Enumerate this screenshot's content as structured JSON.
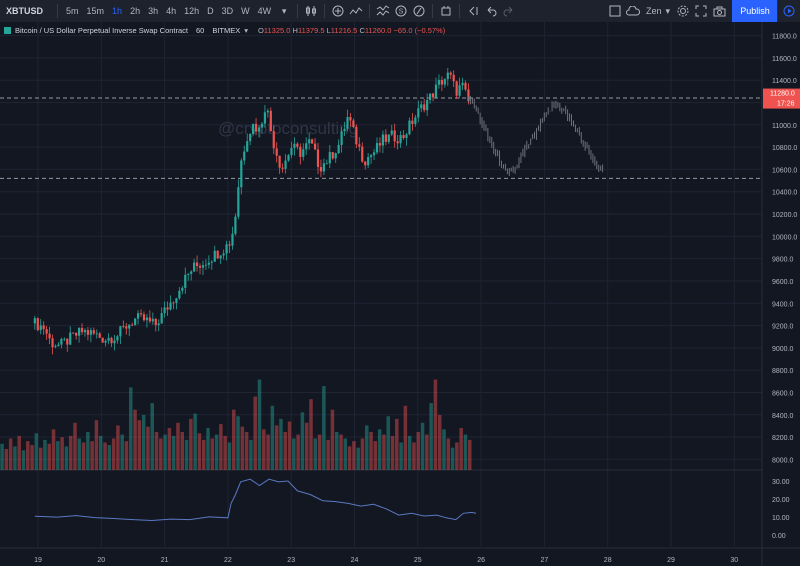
{
  "toolbar": {
    "symbol": "XBTUSD",
    "timeframes": [
      "5m",
      "15m",
      "1h",
      "2h",
      "3h",
      "4h",
      "12h",
      "D",
      "3D",
      "W",
      "4W"
    ],
    "active_timeframe": "1h",
    "theme_label": "Zen",
    "publish_label": "Publish"
  },
  "legend": {
    "title": "Bitcoin / US Dollar Perpetual Inverse Swap Contract",
    "interval": "60",
    "exchange": "BITMEX",
    "open_label": "O",
    "open": "11325.0",
    "high_label": "H",
    "high": "11379.5",
    "low_label": "L",
    "low": "11216.5",
    "close_label": "C",
    "close": "11260.0",
    "change": "−65.0 (−0.57%)"
  },
  "watermark": "@cryptoconsulting",
  "price_badge": {
    "price": "11280.0",
    "countdown": "17:26"
  },
  "colors": {
    "up": "#26a69a",
    "down": "#ef5350",
    "background": "#131722",
    "accent": "#2962ff",
    "projection": "#787b86",
    "oscillator": "#5a78c2"
  },
  "chart_data": {
    "type": "candlestick",
    "price_axis": {
      "ticks": [
        11800,
        11600,
        11400,
        11200,
        11000,
        10800,
        10600,
        10400,
        10200,
        10000,
        9800,
        9600,
        9400,
        9200,
        9000,
        8800,
        8600,
        8400,
        8200,
        8000
      ],
      "range": [
        7950,
        11850
      ]
    },
    "time_axis": {
      "ticks": [
        "19",
        "20",
        "21",
        "22",
        "23",
        "24",
        "25",
        "26",
        "27",
        "28",
        "29",
        "30"
      ]
    },
    "horizontal_levels": [
      11240,
      10520
    ],
    "price_path": [
      [
        18.95,
        9220
      ],
      [
        19.1,
        9180
      ],
      [
        19.2,
        9050
      ],
      [
        19.35,
        9020
      ],
      [
        19.5,
        9080
      ],
      [
        19.7,
        9150
      ],
      [
        19.9,
        9120
      ],
      [
        20.05,
        9080
      ],
      [
        20.25,
        9110
      ],
      [
        20.4,
        9200
      ],
      [
        20.55,
        9260
      ],
      [
        20.7,
        9250
      ],
      [
        20.85,
        9200
      ],
      [
        21.0,
        9330
      ],
      [
        21.15,
        9450
      ],
      [
        21.3,
        9600
      ],
      [
        21.45,
        9720
      ],
      [
        21.6,
        9760
      ],
      [
        21.8,
        9840
      ],
      [
        21.95,
        9900
      ],
      [
        22.05,
        9960
      ],
      [
        22.12,
        10200
      ],
      [
        22.2,
        10650
      ],
      [
        22.3,
        10900
      ],
      [
        22.4,
        11000
      ],
      [
        22.5,
        10950
      ],
      [
        22.6,
        11200
      ],
      [
        22.7,
        10880
      ],
      [
        22.85,
        10600
      ],
      [
        23.0,
        10800
      ],
      [
        23.15,
        10750
      ],
      [
        23.3,
        10850
      ],
      [
        23.45,
        10620
      ],
      [
        23.6,
        10700
      ],
      [
        23.75,
        10820
      ],
      [
        23.9,
        11080
      ],
      [
        24.0,
        10900
      ],
      [
        24.15,
        10680
      ],
      [
        24.3,
        10750
      ],
      [
        24.45,
        10860
      ],
      [
        24.6,
        10900
      ],
      [
        24.75,
        10880
      ],
      [
        24.9,
        11020
      ],
      [
        25.05,
        11150
      ],
      [
        25.2,
        11250
      ],
      [
        25.35,
        11380
      ],
      [
        25.5,
        11450
      ],
      [
        25.6,
        11300
      ],
      [
        25.7,
        11350
      ],
      [
        25.8,
        11200
      ]
    ],
    "projection_path": [
      [
        25.8,
        11250
      ],
      [
        25.95,
        11100
      ],
      [
        26.1,
        10900
      ],
      [
        26.25,
        10720
      ],
      [
        26.4,
        10550
      ],
      [
        26.55,
        10620
      ],
      [
        26.7,
        10780
      ],
      [
        26.85,
        10920
      ],
      [
        27.0,
        11060
      ],
      [
        27.15,
        11180
      ],
      [
        27.3,
        11140
      ],
      [
        27.45,
        11000
      ],
      [
        27.6,
        10860
      ],
      [
        27.75,
        10700
      ],
      [
        27.92,
        10570
      ]
    ],
    "volume": {
      "range_max": 9,
      "levels": [
        2,
        1.6,
        2.4,
        1.8,
        2.6,
        1.5,
        2.2,
        1.9,
        2.8,
        1.7,
        2.3,
        2,
        3.1,
        2.2,
        2.5,
        1.8,
        2.6,
        3.6,
        2.4,
        2.1,
        2.9,
        2.2,
        3.8,
        2.6,
        2.1,
        1.9,
        2.4,
        3.4,
        2.7,
        2.2,
        6.3,
        4.6,
        3.8,
        4.2,
        3.3,
        5.1,
        2.9,
        2.4,
        2.7,
        3.2,
        2.6,
        3.6,
        2.9,
        2.3,
        3.9,
        4.3,
        2.8,
        2.3,
        3.2,
        2.4,
        2.7,
        3.5,
        2.6,
        2.1,
        4.6,
        4.1,
        3.3,
        2.9,
        2.3,
        5.6,
        6.9,
        3.1,
        2.7,
        4.9,
        3.4,
        3.9,
        2.9,
        3.7,
        2.4,
        2.7,
        4.4,
        3.6,
        5.4,
        2.4,
        2.7,
        6.4,
        2.3,
        4.6,
        2.9,
        2.7,
        2.4,
        1.8,
        2.2,
        1.7,
        2.4,
        3.4,
        2.9,
        2.2,
        3.1,
        2.7,
        4.1,
        2.6,
        3.9,
        2.1,
        4.9,
        2.6,
        2.1,
        2.9,
        3.6,
        2.7,
        5.1,
        6.9,
        4.2,
        3.1,
        2.4,
        1.7,
        2.1,
        3.2,
        2.7,
        2.3
      ]
    },
    "oscillator": {
      "ticks": [
        "30.00",
        "20.00",
        "10.00",
        "0.00"
      ],
      "range": [
        -5,
        34
      ],
      "points": [
        [
          18.95,
          10.5
        ],
        [
          19.3,
          10.0
        ],
        [
          19.6,
          10.8
        ],
        [
          19.9,
          9.7
        ],
        [
          20.2,
          9.2
        ],
        [
          20.5,
          8.6
        ],
        [
          20.8,
          8.1
        ],
        [
          21.1,
          8.9
        ],
        [
          21.4,
          8.6
        ],
        [
          21.7,
          10.1
        ],
        [
          22.0,
          9.6
        ],
        [
          22.05,
          17.6
        ],
        [
          22.12,
          22.6
        ],
        [
          22.2,
          29.6
        ],
        [
          22.35,
          31.1
        ],
        [
          22.5,
          27.6
        ],
        [
          22.65,
          31.1
        ],
        [
          22.8,
          29.6
        ],
        [
          22.95,
          30.1
        ],
        [
          23.1,
          24.6
        ],
        [
          23.3,
          22.6
        ],
        [
          23.5,
          19.1
        ],
        [
          23.7,
          18.6
        ],
        [
          23.9,
          17.6
        ],
        [
          24.1,
          16.1
        ],
        [
          24.3,
          17.1
        ],
        [
          24.5,
          14.6
        ],
        [
          24.7,
          11.1
        ],
        [
          24.9,
          12.1
        ],
        [
          25.1,
          10.6
        ],
        [
          25.3,
          11.1
        ],
        [
          25.45,
          9.6
        ],
        [
          25.6,
          8.6
        ],
        [
          25.72,
          12.1
        ],
        [
          25.85,
          12.6
        ],
        [
          25.92,
          12.1
        ]
      ]
    }
  }
}
